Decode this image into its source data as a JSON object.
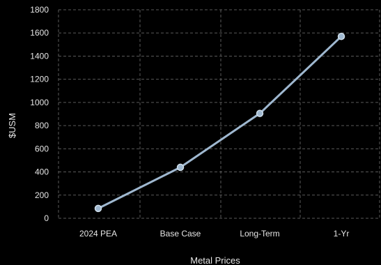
{
  "chart_data": {
    "type": "line",
    "categories": [
      "2024 PEA",
      "Base Case",
      "Long-Term",
      "1-Yr"
    ],
    "series": [
      {
        "values": [
          85,
          440,
          905,
          1570
        ]
      }
    ],
    "xlabel": "Metal Prices",
    "ylabel": "$USM",
    "ylim": [
      0,
      1800
    ],
    "yticks": [
      0,
      200,
      400,
      600,
      800,
      1000,
      1200,
      1400,
      1600,
      1800
    ],
    "grid": true,
    "colors": {
      "background": "#000000",
      "line": "#9fb8d0",
      "marker_fill": "#9fb8d0",
      "marker_edge": "#d0dfeb",
      "grid": "#5a5a5a",
      "text": "#e6e6e6"
    }
  }
}
